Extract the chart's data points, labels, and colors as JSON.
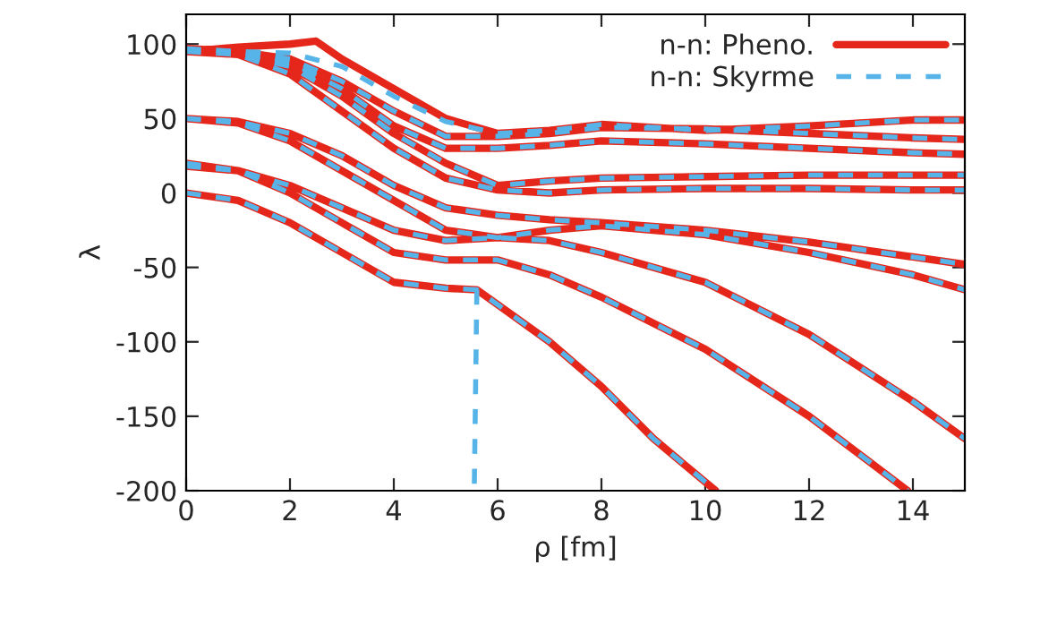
{
  "chart_data": {
    "type": "line",
    "xlabel": "ρ [fm]",
    "ylabel": "λ",
    "xlim": [
      0,
      15
    ],
    "xticks": [
      0,
      2,
      4,
      6,
      8,
      10,
      12,
      14
    ],
    "ylim": [
      -200,
      120
    ],
    "yticks": [
      -200,
      -150,
      -100,
      -50,
      0,
      50,
      100
    ],
    "grid": false,
    "legend": "top right",
    "marker": "none",
    "series": [
      {
        "name": "n-n: Pheno.",
        "color": "#e5271b",
        "line_style": "solid",
        "x": [
          0,
          1,
          2,
          3,
          4,
          5,
          5.6,
          6,
          7,
          8,
          9,
          10.2,
          null,
          0,
          1,
          2,
          3,
          4,
          5,
          6,
          7,
          8,
          10,
          12,
          13.9,
          null,
          0,
          1,
          2,
          3,
          4,
          5,
          6,
          7,
          8,
          10,
          12,
          14,
          15,
          null,
          0,
          1,
          2,
          3,
          4,
          5,
          6,
          7,
          8,
          10,
          12,
          14,
          15,
          null,
          0,
          1,
          2,
          3,
          4,
          5,
          6,
          7,
          8,
          10,
          12,
          14,
          15,
          null,
          0,
          1,
          2,
          3,
          4,
          5,
          6,
          7,
          8,
          10,
          12,
          14,
          15,
          null,
          0,
          1,
          2,
          3,
          4,
          5,
          6,
          7,
          8,
          10,
          12,
          14,
          15,
          null,
          0,
          1,
          2,
          3,
          4,
          5,
          6,
          7,
          8,
          10,
          12,
          14,
          15,
          null,
          0,
          1,
          2,
          3,
          4,
          5,
          6,
          7,
          8,
          10,
          12,
          14,
          15,
          null,
          0,
          1,
          2,
          2.5,
          3,
          4,
          5,
          6,
          7,
          8,
          10,
          12,
          14,
          15
        ],
        "values": [
          0,
          -5,
          -20,
          -40,
          -60,
          -64,
          -65,
          -75,
          -100,
          -130,
          -165,
          -200,
          null,
          20,
          15,
          0,
          -20,
          -40,
          -45,
          -45,
          -55,
          -70,
          -105,
          -150,
          -200,
          null,
          18,
          15,
          5,
          -10,
          -25,
          -32,
          -30,
          -32,
          -40,
          -60,
          -95,
          -140,
          -165,
          null,
          50,
          47,
          35,
          15,
          -5,
          -25,
          -30,
          -25,
          -22,
          -28,
          -40,
          -55,
          -65,
          null,
          50,
          48,
          40,
          25,
          5,
          -10,
          -15,
          -18,
          -20,
          -25,
          -33,
          -43,
          -48,
          null,
          95,
          93,
          80,
          55,
          30,
          10,
          2,
          0,
          2,
          3,
          3,
          2,
          2,
          null,
          96,
          93,
          85,
          65,
          40,
          20,
          5,
          8,
          10,
          11,
          12,
          12,
          12,
          null,
          97,
          95,
          88,
          70,
          45,
          30,
          30,
          32,
          35,
          33,
          30,
          27,
          26,
          null,
          97,
          95,
          90,
          75,
          55,
          38,
          38,
          40,
          44,
          43,
          40,
          37,
          36,
          null,
          95,
          98,
          100,
          102,
          90,
          70,
          50,
          40,
          42,
          46,
          42,
          45,
          49,
          49
        ]
      },
      {
        "name": "n-n: Skyrme",
        "color": "#56b4e9",
        "line_style": "dashed",
        "x": [
          0,
          1,
          2,
          3,
          4,
          5,
          5.6,
          6,
          7,
          8,
          9,
          10.2,
          null,
          5.6,
          5.55,
          null,
          0,
          1,
          2,
          3,
          4,
          5,
          6,
          7,
          8,
          10,
          12,
          13.9,
          null,
          0,
          1,
          2,
          3,
          4,
          5,
          6,
          7,
          8,
          10,
          12,
          14,
          15,
          null,
          0,
          1,
          2,
          3,
          4,
          5,
          6,
          7,
          8,
          10,
          12,
          14,
          15,
          null,
          0,
          1,
          2,
          3,
          4,
          5,
          6,
          7,
          8,
          10,
          12,
          14,
          15,
          null,
          0,
          1,
          2,
          3,
          4,
          5,
          6,
          7,
          8,
          10,
          12,
          14,
          15,
          null,
          0,
          1,
          2,
          3,
          4,
          5,
          6,
          7,
          8,
          10,
          12,
          14,
          15,
          null,
          0,
          1,
          2,
          3,
          4,
          5,
          6,
          7,
          8,
          10,
          12,
          14,
          15,
          null,
          0,
          1,
          2,
          3,
          4,
          5,
          6,
          7,
          8,
          10,
          12,
          14,
          15,
          null,
          0,
          1,
          2,
          3,
          4,
          5,
          6,
          7,
          8,
          10,
          12,
          14,
          15
        ],
        "values": [
          0,
          -5,
          -20,
          -40,
          -60,
          -64,
          -65,
          -75,
          -100,
          -130,
          -165,
          -200,
          null,
          -65,
          -200,
          null,
          20,
          15,
          0,
          -20,
          -40,
          -45,
          -45,
          -55,
          -70,
          -105,
          -150,
          -200,
          null,
          18,
          15,
          5,
          -10,
          -25,
          -32,
          -30,
          -32,
          -40,
          -60,
          -95,
          -140,
          -165,
          null,
          50,
          47,
          35,
          15,
          -5,
          -25,
          -30,
          -25,
          -22,
          -28,
          -40,
          -55,
          -65,
          null,
          50,
          48,
          40,
          25,
          5,
          -10,
          -15,
          -18,
          -20,
          -25,
          -33,
          -43,
          -48,
          null,
          95,
          93,
          80,
          55,
          30,
          10,
          2,
          0,
          2,
          3,
          3,
          2,
          2,
          null,
          96,
          93,
          85,
          65,
          40,
          20,
          5,
          8,
          10,
          11,
          12,
          12,
          12,
          null,
          97,
          95,
          88,
          70,
          45,
          30,
          30,
          32,
          35,
          33,
          30,
          27,
          26,
          null,
          97,
          95,
          90,
          75,
          55,
          38,
          38,
          40,
          44,
          43,
          40,
          37,
          36,
          null,
          95,
          95,
          94,
          85,
          65,
          48,
          40,
          42,
          46,
          42,
          45,
          49,
          49
        ]
      }
    ]
  }
}
